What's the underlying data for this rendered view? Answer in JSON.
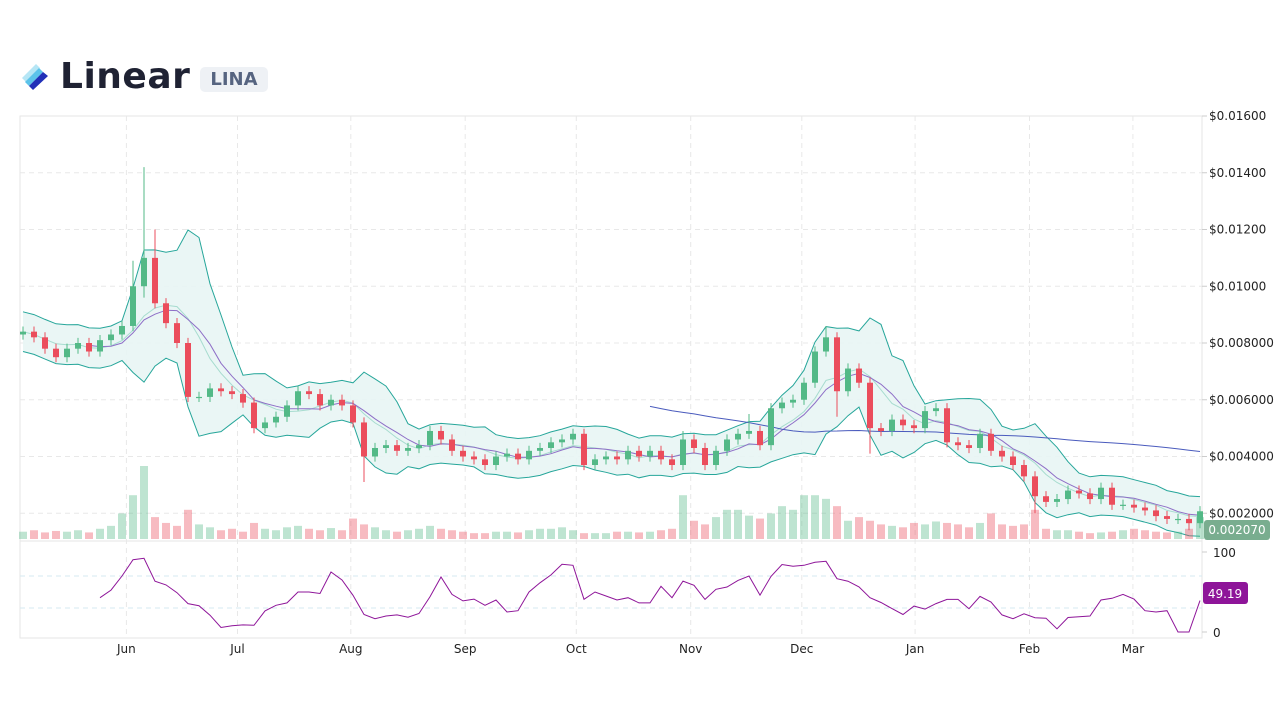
{
  "header": {
    "name": "Linear",
    "ticker": "LINA"
  },
  "colors": {
    "up": "#53b987",
    "down": "#eb4d5c",
    "band": "#26a69a",
    "band_fill": "#e8f5f4",
    "ma_short": "#8e6fc7",
    "ma_long": "#4a5bbd",
    "rsi": "#8e1599",
    "price_label": "#79ad8f"
  },
  "chart_data": {
    "type": "candlestick",
    "title": "",
    "y_ticks": [
      "$0.01600",
      "$0.01400",
      "$0.01200",
      "$0.01000",
      "$0.008000",
      "$0.006000",
      "$0.004000",
      "$0.002000"
    ],
    "y_tick_values": [
      0.016,
      0.014,
      0.012,
      0.01,
      0.008,
      0.006,
      0.004,
      0.002
    ],
    "ylim": [
      0,
      0.016
    ],
    "x_ticks": [
      {
        "label": "Jun",
        "at_candle": 9.4
      },
      {
        "label": "Jul",
        "at_candle": 19.5
      },
      {
        "label": "Aug",
        "at_candle": 29.8
      },
      {
        "label": "Sep",
        "at_candle": 40.2
      },
      {
        "label": "Oct",
        "at_candle": 50.3
      },
      {
        "label": "Nov",
        "at_candle": 60.7
      },
      {
        "label": "Dec",
        "at_candle": 70.8
      },
      {
        "label": "Jan",
        "at_candle": 81.1
      },
      {
        "label": "Feb",
        "at_candle": 91.5
      },
      {
        "label": "Mar",
        "at_candle": 100.9
      }
    ],
    "grid": true,
    "indicators": [
      "Bollinger Bands",
      "Moving Average (short)",
      "Moving Average (long)",
      "Volume",
      "RSI"
    ],
    "close": [
      0.0084,
      0.0082,
      0.0078,
      0.0075,
      0.0078,
      0.008,
      0.0077,
      0.0081,
      0.0083,
      0.0086,
      0.01,
      0.011,
      0.0094,
      0.0087,
      0.008,
      0.0061,
      0.0061,
      0.0064,
      0.0063,
      0.0062,
      0.0059,
      0.005,
      0.0052,
      0.0054,
      0.0058,
      0.0063,
      0.0062,
      0.0058,
      0.006,
      0.0058,
      0.0052,
      0.004,
      0.0043,
      0.0044,
      0.0042,
      0.0043,
      0.0044,
      0.0049,
      0.0046,
      0.0042,
      0.004,
      0.0039,
      0.0037,
      0.004,
      0.0041,
      0.0039,
      0.0042,
      0.0043,
      0.0045,
      0.0046,
      0.0048,
      0.0037,
      0.0039,
      0.004,
      0.0039,
      0.0042,
      0.004,
      0.0042,
      0.0039,
      0.0037,
      0.0046,
      0.0043,
      0.0037,
      0.0042,
      0.0046,
      0.0048,
      0.0049,
      0.0044,
      0.0057,
      0.0059,
      0.006,
      0.0066,
      0.0077,
      0.0082,
      0.0063,
      0.0071,
      0.0066,
      0.005,
      0.0049,
      0.0053,
      0.0051,
      0.005,
      0.0056,
      0.0057,
      0.0045,
      0.0044,
      0.0043,
      0.0048,
      0.0042,
      0.004,
      0.0037,
      0.0033,
      0.0026,
      0.0024,
      0.0025,
      0.0028,
      0.0027,
      0.0025,
      0.0029,
      0.0023,
      0.0023,
      0.0022,
      0.0021,
      0.0019,
      0.0018,
      0.0018,
      0.00165,
      0.00207
    ],
    "first_open": 0.0083,
    "high_overrides": {
      "10": 0.0109,
      "11": 0.0142,
      "12": 0.012,
      "60": 0.0049,
      "66": 0.0055,
      "73": 0.0086
    },
    "low_overrides": {
      "11": 0.0096,
      "31": 0.0031,
      "74": 0.0054,
      "77": 0.0041,
      "92": 0.002,
      "106": 0.0014
    },
    "volume_relative": [
      10,
      12,
      9,
      11,
      10,
      12,
      9,
      14,
      18,
      35,
      60,
      100,
      30,
      22,
      18,
      40,
      20,
      16,
      12,
      14,
      10,
      22,
      14,
      12,
      16,
      18,
      14,
      12,
      15,
      12,
      28,
      20,
      16,
      12,
      10,
      12,
      14,
      18,
      14,
      12,
      10,
      8,
      8,
      10,
      10,
      9,
      12,
      14,
      14,
      16,
      12,
      8,
      8,
      8,
      10,
      10,
      9,
      10,
      12,
      14,
      60,
      25,
      20,
      30,
      40,
      40,
      32,
      28,
      35,
      45,
      40,
      60,
      60,
      55,
      45,
      25,
      30,
      25,
      20,
      18,
      16,
      22,
      20,
      24,
      22,
      20,
      16,
      22,
      35,
      20,
      18,
      20,
      40,
      14,
      12,
      12,
      10,
      8,
      9,
      10,
      12,
      14,
      12,
      10,
      9,
      10,
      14,
      30
    ],
    "rsi_ticks": [
      "100",
      "0"
    ],
    "rsi_levels": [
      70,
      30
    ],
    "last_price_label": "0.002070",
    "last_rsi_label": "49.19"
  }
}
